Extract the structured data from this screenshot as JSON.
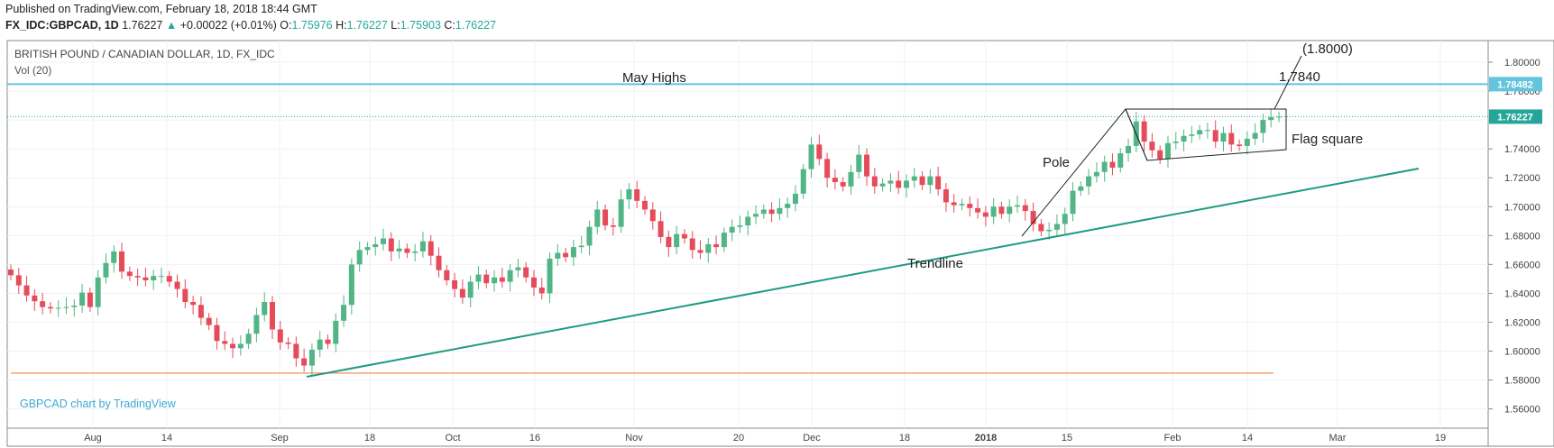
{
  "header": {
    "published": "Published on TradingView.com, February 18, 2018 18:44 GMT",
    "symbol": "FX_IDC:GBPCAD, 1D",
    "last": "1.76227",
    "change": "+0.00022 (+0.01%)",
    "o_label": "O:",
    "o_value": "1.75976",
    "h_label": "H:",
    "h_value": "1.76227",
    "l_label": "L:",
    "l_value": "1.75903",
    "c_label": "C:",
    "c_value": "1.76227"
  },
  "pane": {
    "title": "BRITISH POUND / CANADIAN DOLLAR, 1D, FX_IDC",
    "volume": "Vol (20)",
    "watermark": "GBPCAD chart by TradingView"
  },
  "colors": {
    "up": "#26a69a",
    "down": "#ef5350",
    "up_candle": "#52b586",
    "down_candle": "#e64b5a",
    "support": "#f5a26f",
    "resistance": "#62c4dd",
    "trendline": "#1e9a82",
    "grid": "#eef1f4"
  },
  "chart_data": {
    "type": "candlestick",
    "ylim": [
      1.55,
      1.82
    ],
    "y_ticks": [
      "1.56000",
      "1.58000",
      "1.60000",
      "1.62000",
      "1.64000",
      "1.66000",
      "1.68000",
      "1.70000",
      "1.72000",
      "1.74000",
      "1.76000",
      "1.78000",
      "1.80000"
    ],
    "x_ticks": [
      "Aug",
      "14",
      "Sep",
      "18",
      "Oct",
      "16",
      "Nov",
      "20",
      "Dec",
      "18",
      "2018",
      "15",
      "Feb",
      "14",
      "Mar",
      "19"
    ],
    "closes": [
      1.6525,
      1.6455,
      1.6385,
      1.6345,
      1.6305,
      1.6295,
      1.63,
      1.6305,
      1.6315,
      1.6405,
      1.6305,
      1.651,
      1.661,
      1.669,
      1.655,
      1.652,
      1.651,
      1.649,
      1.652,
      1.652,
      1.648,
      1.643,
      1.634,
      1.632,
      1.623,
      1.618,
      1.607,
      1.605,
      1.602,
      1.605,
      1.612,
      1.625,
      1.634,
      1.615,
      1.606,
      1.605,
      1.595,
      1.59,
      1.601,
      1.608,
      1.605,
      1.621,
      1.632,
      1.66,
      1.67,
      1.672,
      1.674,
      1.678,
      1.669,
      1.671,
      1.668,
      1.669,
      1.676,
      1.666,
      1.656,
      1.649,
      1.643,
      1.637,
      1.648,
      1.653,
      1.647,
      1.651,
      1.648,
      1.656,
      1.658,
      1.651,
      1.644,
      1.64,
      1.664,
      1.668,
      1.665,
      1.672,
      1.673,
      1.686,
      1.698,
      1.687,
      1.686,
      1.705,
      1.712,
      1.704,
      1.698,
      1.69,
      1.679,
      1.672,
      1.681,
      1.678,
      1.67,
      1.668,
      1.674,
      1.672,
      1.682,
      1.686,
      1.687,
      1.693,
      1.695,
      1.698,
      1.695,
      1.699,
      1.702,
      1.709,
      1.726,
      1.743,
      1.733,
      1.72,
      1.717,
      1.714,
      1.724,
      1.736,
      1.721,
      1.714,
      1.716,
      1.718,
      1.713,
      1.718,
      1.721,
      1.715,
      1.721,
      1.712,
      1.703,
      1.701,
      1.702,
      1.699,
      1.696,
      1.693,
      1.7,
      1.695,
      1.7,
      1.701,
      1.697,
      1.688,
      1.683,
      1.684,
      1.688,
      1.695,
      1.711,
      1.714,
      1.721,
      1.724,
      1.731,
      1.727,
      1.737,
      1.742,
      1.759,
      1.745,
      1.739,
      1.733,
      1.744,
      1.745,
      1.749,
      1.75,
      1.753,
      1.753,
      1.745,
      1.751,
      1.743,
      1.742,
      1.747,
      1.751,
      1.76,
      1.762,
      1.7623
    ],
    "hlines": [
      {
        "label": "May Highs",
        "value": 1.7848,
        "price_label": "1.78482"
      },
      {
        "label": "",
        "value": 1.5848,
        "price_label": ""
      }
    ],
    "last_price_label": "1.76227",
    "annotations": [
      "May Highs",
      "(1.8000)",
      "1.7840",
      "Pole",
      "Flag square",
      "Trendline"
    ]
  }
}
